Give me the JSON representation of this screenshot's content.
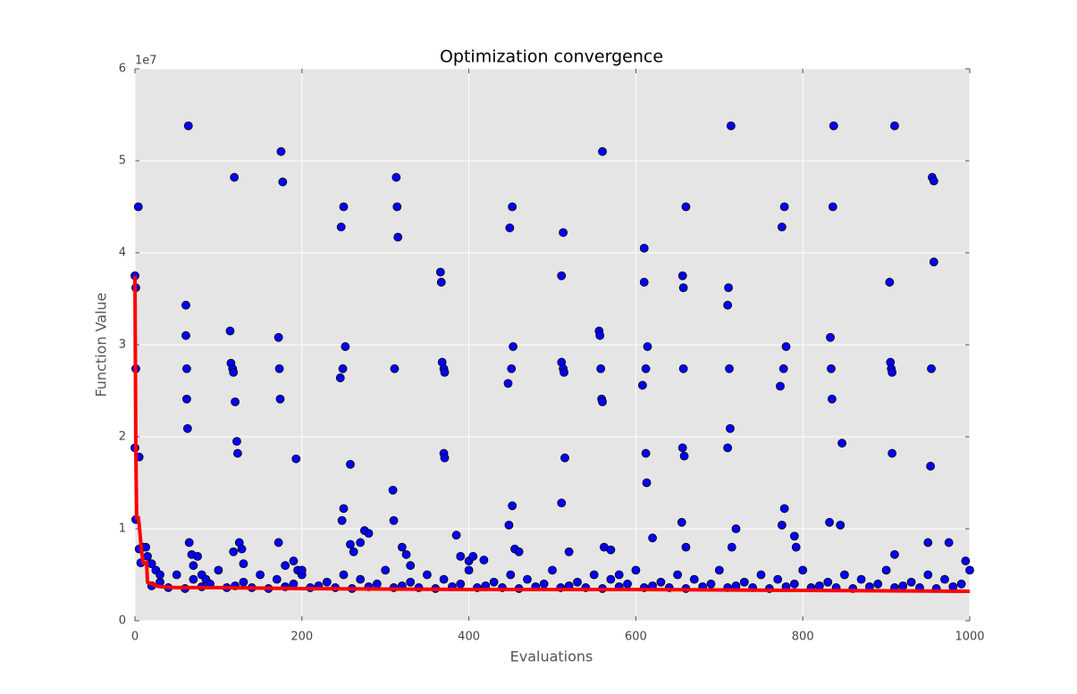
{
  "chart_data": {
    "type": "scatter",
    "title": "Optimization convergence",
    "x_label": "Evaluations",
    "y_label": "Function Value",
    "y_offset_label": "1e7",
    "xlim": [
      0,
      1000
    ],
    "xticks": [
      0,
      200,
      400,
      600,
      800,
      1000
    ],
    "ylim": [
      0,
      6
    ],
    "yticks": [
      0,
      1,
      2,
      3,
      4,
      5,
      6
    ],
    "grid": true,
    "background": "#e5e5e5",
    "series": [
      {
        "style": "markers",
        "color": "#0000ff",
        "x": [
          0,
          1,
          1,
          4,
          0,
          5,
          1,
          5,
          7,
          10,
          13,
          15,
          20,
          25,
          30,
          64,
          61,
          61,
          62,
          62,
          63,
          65,
          68,
          70,
          75,
          80,
          85,
          114,
          115,
          117,
          118,
          119,
          120,
          122,
          123,
          125,
          128,
          130,
          118,
          175,
          177,
          172,
          173,
          174,
          172,
          180,
          190,
          193,
          195,
          200,
          247,
          250,
          252,
          249,
          246,
          258,
          250,
          248,
          258,
          262,
          270,
          275,
          280,
          313,
          314,
          315,
          311,
          309,
          310,
          320,
          325,
          330,
          366,
          367,
          368,
          370,
          371,
          370,
          371,
          385,
          390,
          400,
          405,
          418,
          449,
          452,
          453,
          451,
          447,
          452,
          448,
          455,
          460,
          511,
          513,
          511,
          513,
          514,
          515,
          511,
          520,
          556,
          557,
          558,
          559,
          560,
          560,
          562,
          570,
          580,
          610,
          610,
          614,
          612,
          608,
          612,
          613,
          620,
          656,
          657,
          657,
          656,
          658,
          655,
          660,
          660,
          710,
          711,
          712,
          713,
          710,
          714,
          715,
          720,
          778,
          775,
          780,
          777,
          773,
          778,
          775,
          790,
          792,
          837,
          836,
          833,
          834,
          835,
          847,
          832,
          845,
          910,
          904,
          905,
          906,
          907,
          907,
          910,
          955,
          957,
          957,
          954,
          953,
          950,
          975,
          995,
          20,
          30,
          40,
          50,
          60,
          70,
          80,
          90,
          100,
          110,
          120,
          130,
          140,
          150,
          160,
          170,
          180,
          190,
          200,
          210,
          220,
          230,
          240,
          250,
          260,
          270,
          280,
          290,
          300,
          310,
          320,
          330,
          340,
          350,
          360,
          370,
          380,
          390,
          400,
          410,
          420,
          430,
          440,
          450,
          460,
          470,
          480,
          490,
          500,
          510,
          520,
          530,
          540,
          550,
          560,
          570,
          580,
          590,
          600,
          610,
          620,
          630,
          640,
          650,
          660,
          670,
          680,
          690,
          700,
          710,
          720,
          730,
          740,
          750,
          760,
          770,
          780,
          790,
          800,
          810,
          820,
          830,
          840,
          850,
          860,
          870,
          880,
          890,
          900,
          910,
          920,
          930,
          940,
          950,
          960,
          970,
          980,
          990,
          1000
        ],
        "values": [
          3.75,
          3.62,
          2.74,
          4.5,
          1.88,
          1.78,
          1.1,
          0.78,
          0.63,
          0.8,
          0.8,
          0.7,
          0.62,
          0.55,
          0.5,
          5.38,
          3.43,
          3.1,
          2.74,
          2.41,
          2.09,
          0.85,
          0.72,
          0.6,
          0.7,
          0.5,
          0.45,
          3.15,
          2.8,
          2.74,
          2.7,
          4.82,
          2.38,
          1.95,
          1.82,
          0.85,
          0.78,
          0.62,
          0.75,
          5.1,
          4.77,
          3.08,
          2.74,
          2.41,
          0.85,
          0.6,
          0.65,
          1.76,
          0.55,
          0.5,
          4.28,
          4.5,
          2.98,
          2.74,
          2.64,
          1.7,
          1.22,
          1.09,
          0.83,
          0.75,
          0.85,
          0.98,
          0.95,
          4.82,
          4.5,
          4.17,
          2.74,
          1.42,
          1.09,
          0.8,
          0.72,
          0.6,
          3.79,
          3.68,
          2.81,
          2.74,
          2.7,
          1.82,
          1.77,
          0.93,
          0.7,
          0.65,
          0.7,
          0.66,
          4.27,
          4.5,
          2.98,
          2.74,
          2.58,
          1.25,
          1.04,
          0.78,
          0.75,
          3.75,
          4.22,
          2.81,
          2.74,
          2.7,
          1.77,
          1.28,
          0.75,
          3.15,
          3.1,
          2.74,
          2.41,
          2.38,
          5.1,
          0.8,
          0.77,
          0.5,
          4.05,
          3.68,
          2.98,
          2.74,
          2.56,
          1.82,
          1.5,
          0.9,
          3.75,
          3.62,
          2.74,
          1.88,
          1.79,
          1.07,
          4.5,
          0.8,
          3.43,
          3.62,
          2.74,
          2.09,
          1.88,
          5.38,
          0.8,
          1.0,
          4.5,
          4.28,
          2.98,
          2.74,
          2.55,
          1.22,
          1.04,
          0.92,
          0.8,
          5.38,
          4.5,
          3.08,
          2.74,
          2.41,
          1.93,
          1.07,
          1.04,
          5.38,
          3.68,
          2.81,
          2.74,
          2.7,
          1.82,
          0.72,
          4.82,
          4.78,
          3.9,
          2.74,
          1.68,
          0.85,
          0.85,
          0.65,
          0.38,
          0.42,
          0.36,
          0.5,
          0.35,
          0.45,
          0.37,
          0.4,
          0.55,
          0.36,
          0.38,
          0.42,
          0.36,
          0.5,
          0.35,
          0.45,
          0.37,
          0.4,
          0.55,
          0.36,
          0.38,
          0.42,
          0.36,
          0.5,
          0.35,
          0.45,
          0.37,
          0.4,
          0.55,
          0.36,
          0.38,
          0.42,
          0.36,
          0.5,
          0.35,
          0.45,
          0.37,
          0.4,
          0.55,
          0.36,
          0.38,
          0.42,
          0.36,
          0.5,
          0.35,
          0.45,
          0.37,
          0.4,
          0.55,
          0.36,
          0.38,
          0.42,
          0.36,
          0.5,
          0.35,
          0.45,
          0.37,
          0.4,
          0.55,
          0.36,
          0.38,
          0.42,
          0.36,
          0.5,
          0.35,
          0.45,
          0.37,
          0.4,
          0.55,
          0.36,
          0.38,
          0.42,
          0.36,
          0.5,
          0.35,
          0.45,
          0.37,
          0.4,
          0.55,
          0.36,
          0.38,
          0.42,
          0.36,
          0.5,
          0.35,
          0.45,
          0.37,
          0.4,
          0.55,
          0.36,
          0.38,
          0.42,
          0.36,
          0.5,
          0.35,
          0.45,
          0.37,
          0.4,
          0.55
        ]
      },
      {
        "style": "line",
        "color": "#ff0000",
        "x": [
          0,
          1,
          2,
          3,
          4,
          5,
          8,
          10,
          12,
          14,
          15,
          20,
          25,
          30,
          50,
          100,
          200,
          400,
          600,
          800,
          1000
        ],
        "values": [
          3.75,
          1.88,
          1.12,
          1.12,
          1.12,
          1.05,
          0.75,
          0.63,
          0.63,
          0.63,
          0.42,
          0.4,
          0.38,
          0.37,
          0.36,
          0.36,
          0.35,
          0.34,
          0.34,
          0.33,
          0.32
        ]
      }
    ]
  }
}
